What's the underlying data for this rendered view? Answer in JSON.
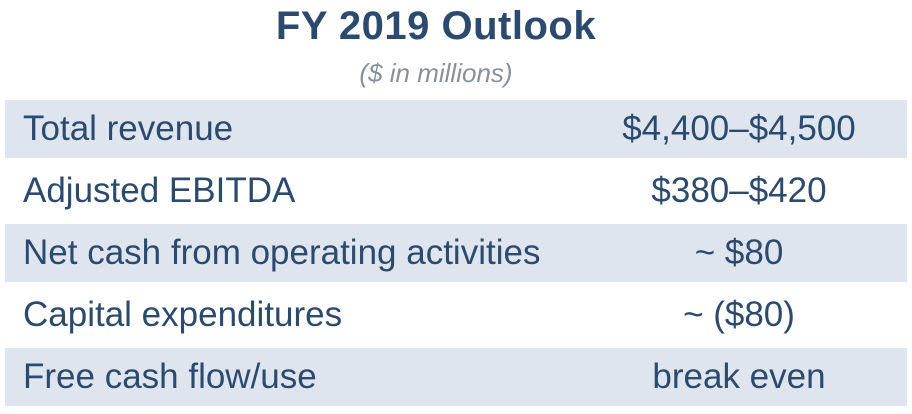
{
  "header": {
    "title": "FY 2019 Outlook",
    "subtitle": "($ in millions)"
  },
  "rows": [
    {
      "label": "Total revenue",
      "value": "$4,400–$4,500"
    },
    {
      "label": "Adjusted EBITDA",
      "value": "$380–$420"
    },
    {
      "label": "Net cash from operating activities",
      "value": "~ $80"
    },
    {
      "label": "Capital expenditures",
      "value": "~ ($80)"
    },
    {
      "label": "Free cash flow/use",
      "value": "break even"
    }
  ],
  "colors": {
    "text": "#2c4a6e",
    "subtitle": "#8a9099",
    "row_shade": "#dfe5ee"
  }
}
